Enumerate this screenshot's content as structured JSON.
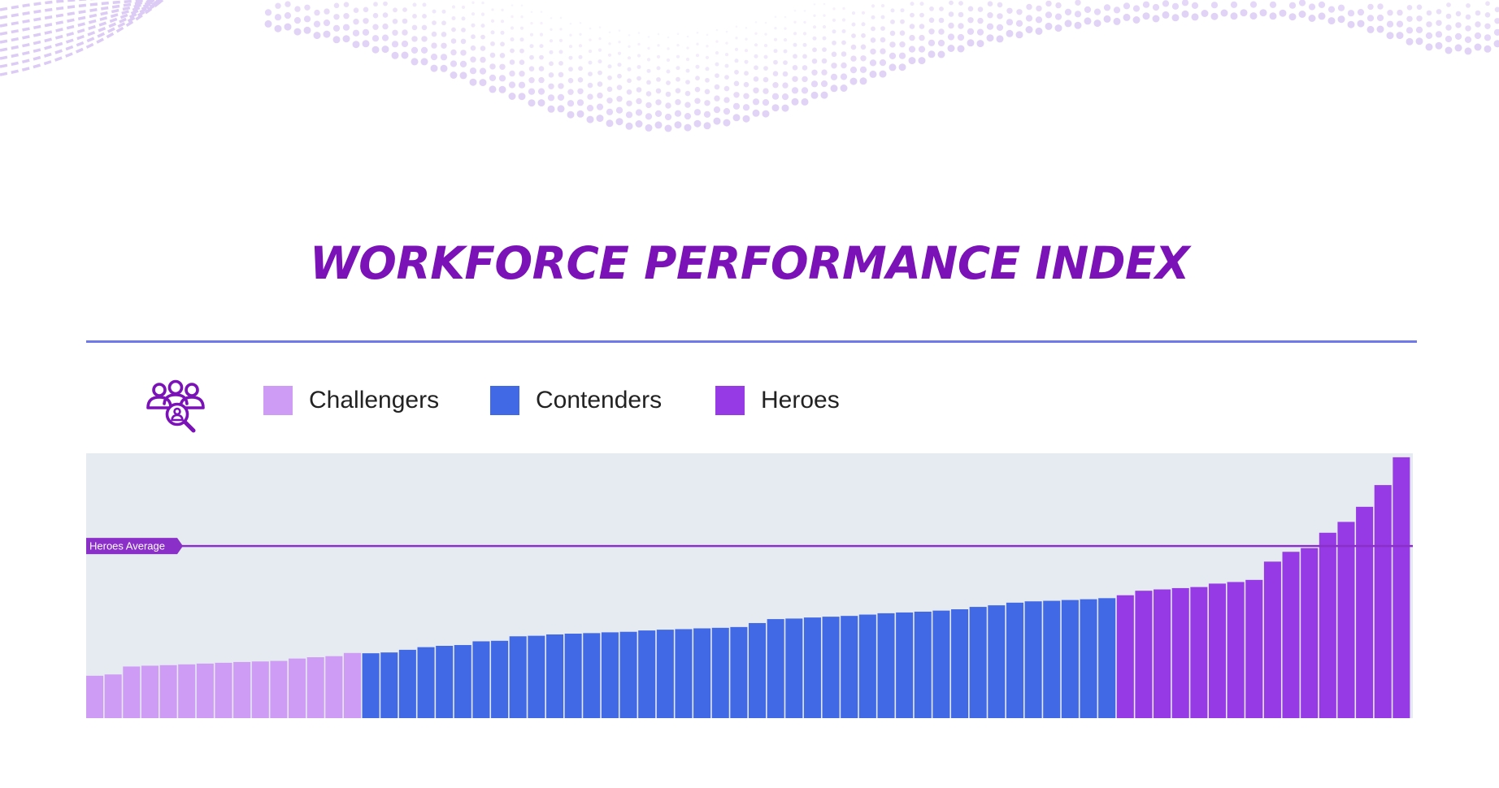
{
  "title": "WORKFORCE PERFORMANCE INDEX",
  "colors": {
    "title": "#7a12b8",
    "rule": "#6f79ea",
    "plot_background": "#e6eaf1",
    "average_line": "#8b2fc9",
    "decoration": "#dccbf4"
  },
  "icons": {
    "team": "team-search-icon"
  },
  "legend": [
    {
      "label": "Challengers",
      "color": "#cf9cf5"
    },
    {
      "label": "Contenders",
      "color": "#4169e6"
    },
    {
      "label": "Heroes",
      "color": "#953ae4"
    }
  ],
  "chart_data": {
    "type": "bar",
    "title": "",
    "xlabel": "",
    "ylabel": "",
    "grid": false,
    "legend_position": "top-left",
    "ylim": [
      0,
      100
    ],
    "reference_line": {
      "label": "Heroes Average",
      "value": 65
    },
    "series": [
      {
        "name": "Challengers",
        "color": "#cf9cf5",
        "values": [
          16,
          16.5,
          19.5,
          19.8,
          20,
          20.3,
          20.6,
          20.9,
          21.2,
          21.4,
          21.6,
          22.5,
          23,
          23.4,
          24.6
        ]
      },
      {
        "name": "Contenders",
        "color": "#4169e6",
        "values": [
          24.5,
          24.8,
          25.8,
          26.8,
          27.3,
          27.6,
          29,
          29.2,
          30.9,
          31.1,
          31.6,
          31.9,
          32.1,
          32.4,
          32.6,
          33.1,
          33.4,
          33.6,
          33.9,
          34.1,
          34.4,
          35.9,
          37.4,
          37.6,
          38,
          38.3,
          38.6,
          39.1,
          39.6,
          39.9,
          40.2,
          40.6,
          41.1,
          42,
          42.6,
          43.6,
          44.1,
          44.3,
          44.6,
          44.9,
          45.3
        ]
      },
      {
        "name": "Heroes",
        "color": "#953ae4",
        "values": [
          46.4,
          48.1,
          48.6,
          49.1,
          49.5,
          50.8,
          51.4,
          52.2,
          59.1,
          62.8,
          64.2,
          70,
          74.1,
          79.8,
          88,
          98.5
        ]
      }
    ]
  }
}
